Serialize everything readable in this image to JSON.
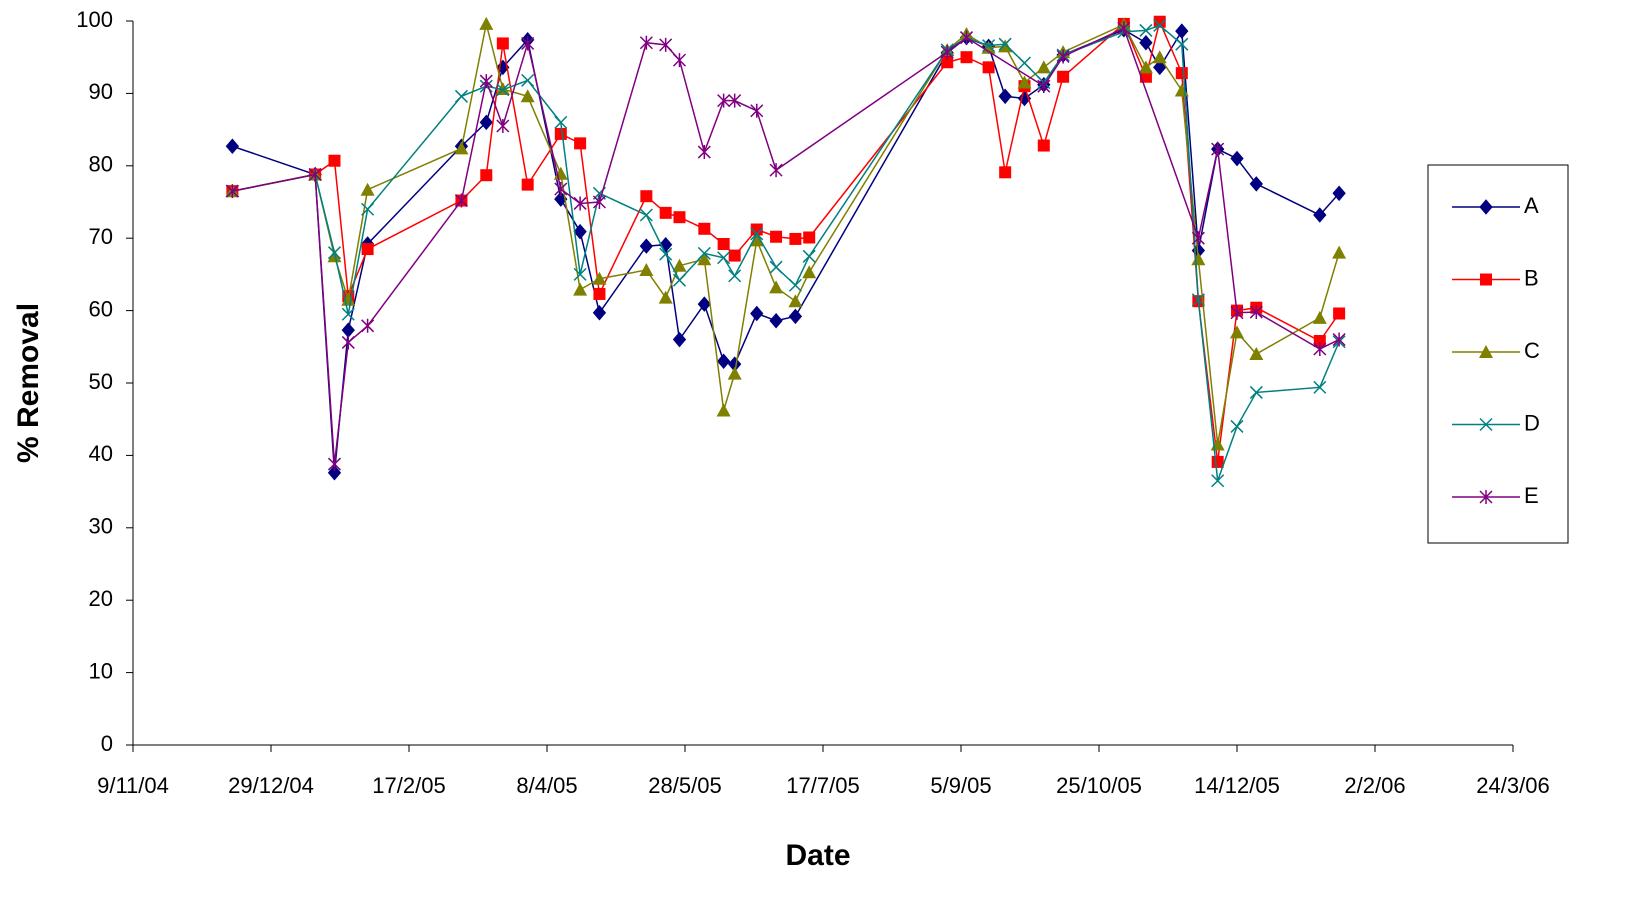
{
  "chart_data": {
    "type": "line",
    "xlabel": "Date",
    "ylabel": "% Removal",
    "xlim": [
      "2004-11-09",
      "2006-03-24"
    ],
    "xticks": [
      {
        "value": "2004-11-09",
        "label": "9/11/04"
      },
      {
        "value": "2004-12-29",
        "label": "29/12/04"
      },
      {
        "value": "2005-02-17",
        "label": "17/2/05"
      },
      {
        "value": "2005-04-08",
        "label": "8/4/05"
      },
      {
        "value": "2005-05-28",
        "label": "28/5/05"
      },
      {
        "value": "2005-07-17",
        "label": "17/7/05"
      },
      {
        "value": "2005-09-05",
        "label": "5/9/05"
      },
      {
        "value": "2005-10-25",
        "label": "25/10/05"
      },
      {
        "value": "2005-12-14",
        "label": "14/12/05"
      },
      {
        "value": "2006-02-02",
        "label": "2/2/06"
      },
      {
        "value": "2006-03-24",
        "label": "24/3/06"
      }
    ],
    "ylim": [
      0,
      100
    ],
    "yticks": [
      0,
      10,
      20,
      30,
      40,
      50,
      60,
      70,
      80,
      90,
      100
    ],
    "legend": "right",
    "series": [
      {
        "name": "A",
        "color": "#000080",
        "marker": "diamond",
        "x": [
          "2004-12-15",
          "2005-01-14",
          "2005-01-21",
          "2005-01-26",
          "2005-02-02",
          "2005-03-08",
          "2005-03-17",
          "2005-03-23",
          "2005-04-01",
          "2005-04-13",
          "2005-04-20",
          "2005-04-27",
          "2005-05-14",
          "2005-05-21",
          "2005-05-26",
          "2005-06-04",
          "2005-06-11",
          "2005-06-15",
          "2005-06-23",
          "2005-06-30",
          "2005-07-07",
          "2005-08-31",
          "2005-09-07",
          "2005-09-15",
          "2005-09-21",
          "2005-09-28",
          "2005-10-05",
          "2005-10-12",
          "2005-11-03",
          "2005-11-11",
          "2005-11-16",
          "2005-11-24",
          "2005-11-30",
          "2005-12-07",
          "2005-12-14",
          "2005-12-21",
          "2006-01-13",
          "2006-01-20"
        ],
        "values": [
          82.7,
          78.8,
          37.6,
          57.3,
          69.2,
          82.7,
          86,
          93.6,
          97.4,
          75.4,
          70.9,
          59.7,
          68.9,
          69.1,
          56,
          60.9,
          53,
          52.6,
          59.6,
          58.6,
          59.2,
          95.6,
          97.7,
          96.5,
          89.6,
          89.3,
          91.2,
          95.3,
          98.8,
          97,
          93.6,
          98.6,
          68.3,
          82.3,
          81,
          77.5,
          73.2,
          76.2
        ]
      },
      {
        "name": "B",
        "color": "#ff0000",
        "marker": "square",
        "x": [
          "2004-12-15",
          "2005-01-14",
          "2005-01-21",
          "2005-01-26",
          "2005-02-02",
          "2005-03-08",
          "2005-03-17",
          "2005-03-23",
          "2005-04-01",
          "2005-04-13",
          "2005-04-20",
          "2005-04-27",
          "2005-05-14",
          "2005-05-21",
          "2005-05-26",
          "2005-06-04",
          "2005-06-11",
          "2005-06-15",
          "2005-06-23",
          "2005-06-30",
          "2005-07-07",
          "2005-07-12",
          "2005-08-31",
          "2005-09-07",
          "2005-09-15",
          "2005-09-21",
          "2005-09-28",
          "2005-10-05",
          "2005-10-12",
          "2005-11-03",
          "2005-11-11",
          "2005-11-16",
          "2005-11-24",
          "2005-11-30",
          "2005-12-07",
          "2005-12-14",
          "2005-12-21",
          "2006-01-13",
          "2006-01-20"
        ],
        "values": [
          76.5,
          78.8,
          80.7,
          62,
          68.5,
          75.2,
          78.7,
          96.9,
          77.4,
          84.4,
          83.1,
          62.3,
          75.8,
          73.5,
          72.9,
          71.3,
          69.2,
          67.6,
          71.2,
          70.2,
          69.9,
          70.1,
          94.3,
          95,
          93.6,
          79.1,
          91,
          82.8,
          92.3,
          99.6,
          92.3,
          99.9,
          92.8,
          61.3,
          39.1,
          60,
          60.4,
          55.8,
          59.6
        ]
      },
      {
        "name": "C",
        "color": "#808000",
        "marker": "triangle",
        "x": [
          "2004-12-15",
          "2005-01-14",
          "2005-01-21",
          "2005-01-26",
          "2005-02-02",
          "2005-03-08",
          "2005-03-17",
          "2005-03-23",
          "2005-04-01",
          "2005-04-13",
          "2005-04-20",
          "2005-04-27",
          "2005-05-14",
          "2005-05-21",
          "2005-05-26",
          "2005-06-04",
          "2005-06-11",
          "2005-06-15",
          "2005-06-23",
          "2005-06-30",
          "2005-07-07",
          "2005-07-12",
          "2005-08-31",
          "2005-09-07",
          "2005-09-15",
          "2005-09-21",
          "2005-09-28",
          "2005-10-05",
          "2005-10-12",
          "2005-11-03",
          "2005-11-11",
          "2005-11-16",
          "2005-11-24",
          "2005-11-30",
          "2005-12-07",
          "2005-12-14",
          "2005-12-21",
          "2006-01-13",
          "2006-01-20"
        ],
        "values": [
          76.5,
          78.8,
          67.5,
          61.5,
          76.7,
          82.4,
          99.6,
          90.6,
          89.6,
          78.9,
          62.9,
          64.4,
          65.6,
          61.8,
          66.2,
          67.1,
          46.2,
          51.3,
          69.7,
          63.2,
          61.3,
          65.3,
          96,
          98.2,
          96.3,
          96.5,
          91.5,
          93.6,
          95.7,
          99.5,
          93.6,
          95,
          90.4,
          67.1,
          41.5,
          57,
          54,
          59,
          68
        ]
      },
      {
        "name": "D",
        "color": "#008080",
        "marker": "x",
        "x": [
          "2004-12-15",
          "2005-01-14",
          "2005-01-21",
          "2005-01-26",
          "2005-02-02",
          "2005-03-08",
          "2005-03-17",
          "2005-03-23",
          "2005-04-01",
          "2005-04-13",
          "2005-04-20",
          "2005-04-27",
          "2005-05-14",
          "2005-05-21",
          "2005-05-26",
          "2005-06-04",
          "2005-06-11",
          "2005-06-15",
          "2005-06-23",
          "2005-06-30",
          "2005-07-07",
          "2005-07-12",
          "2005-08-31",
          "2005-09-07",
          "2005-09-15",
          "2005-09-21",
          "2005-09-28",
          "2005-10-05",
          "2005-10-12",
          "2005-11-03",
          "2005-11-11",
          "2005-11-16",
          "2005-11-24",
          "2005-11-30",
          "2005-12-07",
          "2005-12-14",
          "2005-12-21",
          "2006-01-13",
          "2006-01-20"
        ],
        "values": [
          76.5,
          78.8,
          68,
          59.5,
          74,
          89.6,
          91,
          90.5,
          91.8,
          86,
          65,
          76.2,
          73.2,
          67.8,
          64.2,
          67.9,
          67.3,
          64.8,
          70.6,
          66,
          63.5,
          67.5,
          96,
          97.7,
          96.6,
          96.8,
          94.2,
          91.5,
          95.3,
          98.5,
          98.7,
          99.4,
          96.8,
          61.5,
          36.5,
          44,
          48.7,
          49.4,
          55.7
        ]
      },
      {
        "name": "E",
        "color": "#800080",
        "marker": "asterisk",
        "x": [
          "2004-12-15",
          "2005-01-14",
          "2005-01-21",
          "2005-01-26",
          "2005-02-02",
          "2005-03-08",
          "2005-03-17",
          "2005-03-23",
          "2005-04-01",
          "2005-04-13",
          "2005-04-20",
          "2005-04-27",
          "2005-05-14",
          "2005-05-21",
          "2005-05-26",
          "2005-06-04",
          "2005-06-11",
          "2005-06-15",
          "2005-06-23",
          "2005-06-30",
          "2005-08-31",
          "2005-09-07",
          "2005-10-05",
          "2005-10-12",
          "2005-11-03",
          "2005-11-30",
          "2005-12-07",
          "2005-12-14",
          "2005-12-21",
          "2006-01-13",
          "2006-01-20"
        ],
        "values": [
          76.5,
          78.8,
          38.8,
          55.6,
          57.9,
          75.2,
          91.7,
          85.5,
          96.9,
          76.8,
          74.8,
          75,
          97,
          96.7,
          94.6,
          81.9,
          89,
          89,
          87.6,
          79.4,
          95.7,
          97.7,
          91,
          95.1,
          99,
          70,
          82.3,
          59.7,
          59.8,
          54.7,
          56
        ]
      }
    ]
  }
}
